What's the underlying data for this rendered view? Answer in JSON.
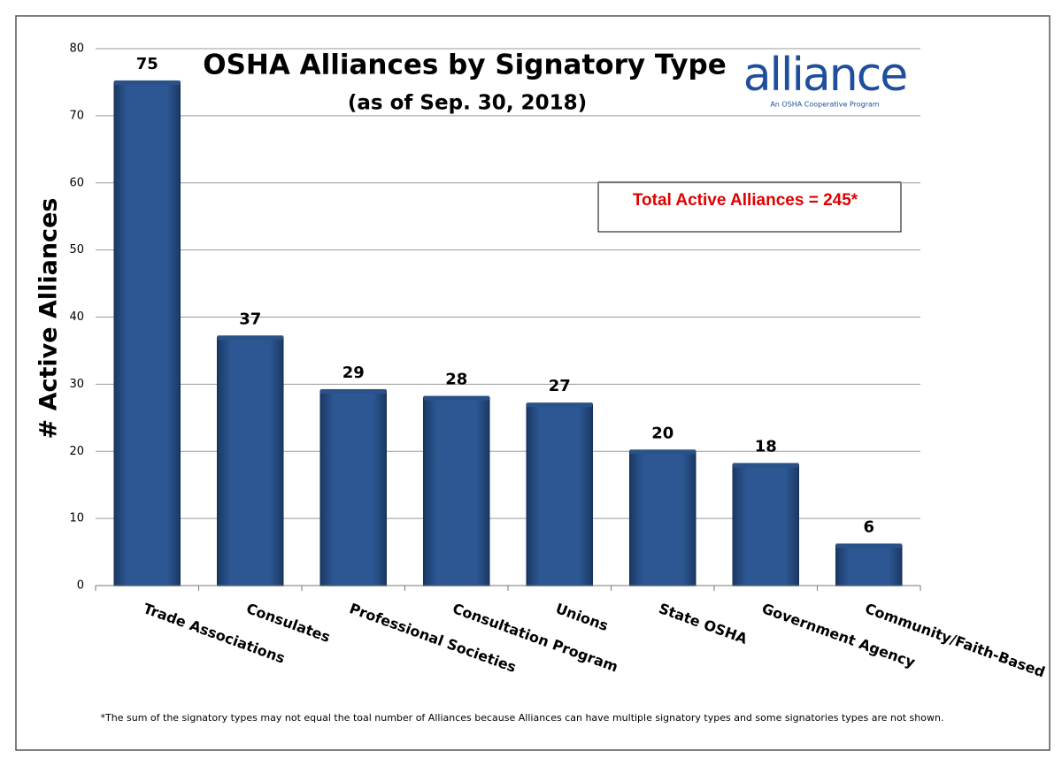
{
  "chart_data": {
    "type": "bar",
    "title": "OSHA Alliances by Signatory Type",
    "subtitle": "(as of  Sep. 30, 2018)",
    "y_label": "# Active Alliances",
    "annotation": "Total Active Alliances = 245*",
    "footnote": "*The sum of the  signatory types may not  equal the toal number of Alliances because Alliances can have multiple signatory types and some signatories types are not shown.",
    "logo": {
      "text": "alliance",
      "tagline": "An OSHA Cooperative Program"
    },
    "categories": [
      "Trade Associations",
      "Consulates",
      "Professional Societies",
      "Consultation Program",
      "Unions",
      "State OSHA",
      "Government Agency",
      "Community/Faith-Based"
    ],
    "values": [
      75,
      37,
      29,
      28,
      27,
      20,
      18,
      6
    ],
    "color": "#2a5288",
    "ylim": [
      0,
      80
    ],
    "yticks": [
      0,
      10,
      20,
      30,
      40,
      50,
      60,
      70,
      80
    ],
    "grid": true
  }
}
